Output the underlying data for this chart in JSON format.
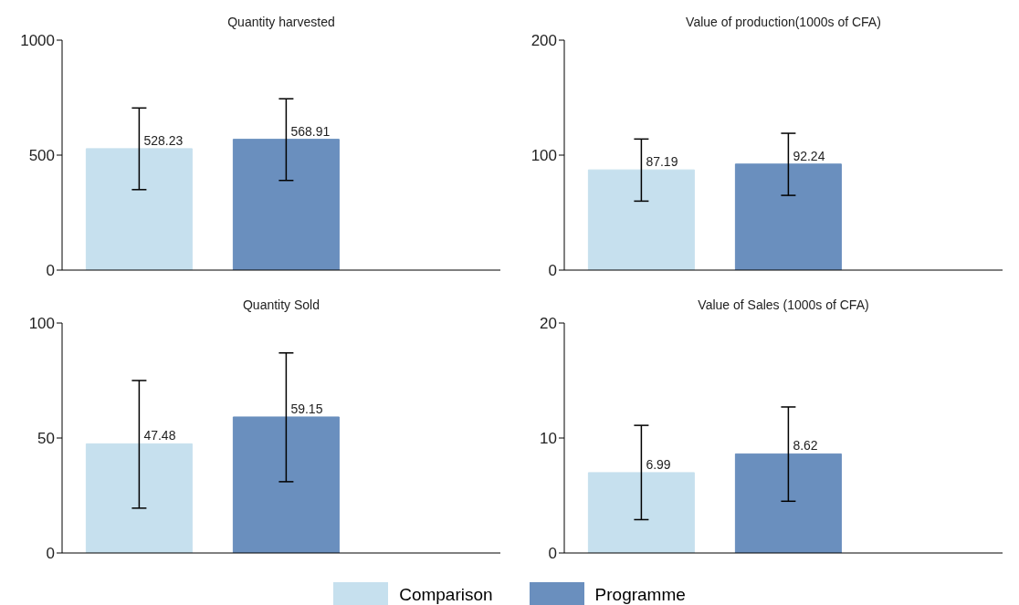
{
  "chart_data": [
    {
      "type": "bar",
      "title": "Quantity harvested",
      "categories": [
        null
      ],
      "ylim": [
        0,
        1000
      ],
      "yticks": [
        0,
        500,
        1000
      ],
      "data_labels": true,
      "legend": "bottom",
      "grid": false,
      "series": [
        {
          "name": "Comparison",
          "color": "#c6e0ee",
          "values": [
            528.23
          ],
          "errors": [
            [
              350,
              705
            ]
          ]
        },
        {
          "name": "Programme",
          "color": "#6a8fbe",
          "values": [
            568.91
          ],
          "errors": [
            [
              390,
              745
            ]
          ]
        }
      ]
    },
    {
      "type": "bar",
      "title": "Value of production(1000s of CFA)",
      "categories": [
        null
      ],
      "ylim": [
        0,
        200
      ],
      "yticks": [
        0,
        100,
        200
      ],
      "data_labels": true,
      "grid": false,
      "series": [
        {
          "color": "#c6e0ee",
          "values": [
            87.19
          ],
          "errors": [
            [
              60,
              114
            ]
          ]
        },
        {
          "color": "#6a8fbe",
          "values": [
            92.24
          ],
          "errors": [
            [
              65,
              119
            ]
          ]
        }
      ]
    },
    {
      "type": "bar",
      "title": "Quantity Sold",
      "categories": [
        null
      ],
      "ylim": [
        0,
        100
      ],
      "yticks": [
        0,
        50,
        100
      ],
      "data_labels": true,
      "grid": false,
      "series": [
        {
          "color": "#c6e0ee",
          "values": [
            47.48
          ],
          "errors": [
            [
              19.5,
              75
            ]
          ]
        },
        {
          "color": "#6a8fbe",
          "values": [
            59.15
          ],
          "errors": [
            [
              31,
              87
            ]
          ]
        }
      ]
    },
    {
      "type": "bar",
      "title": "Value of Sales (1000s of CFA)",
      "categories": [
        null
      ],
      "ylim": [
        0,
        20
      ],
      "yticks": [
        0,
        10,
        20
      ],
      "data_labels": true,
      "grid": false,
      "series": [
        {
          "color": "#c6e0ee",
          "values": [
            6.99
          ],
          "errors": [
            [
              2.9,
              11.1
            ]
          ]
        },
        {
          "color": "#6a8fbe",
          "values": [
            8.62
          ],
          "errors": [
            [
              4.5,
              12.7
            ]
          ]
        }
      ]
    }
  ]
}
